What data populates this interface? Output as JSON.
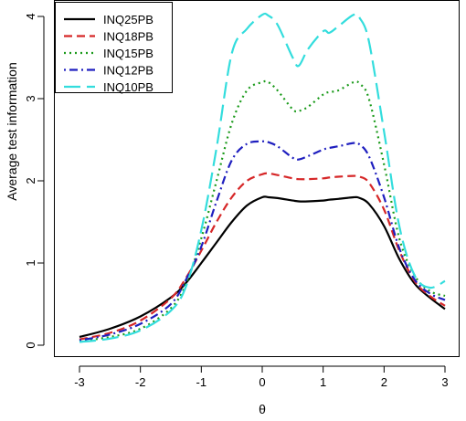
{
  "chart_data": {
    "type": "line",
    "title": "",
    "xlabel": "θ",
    "ylabel": "Average test information",
    "xlim": [
      -3,
      3
    ],
    "ylim": [
      0,
      4.05
    ],
    "xticks": [
      "-3",
      "-2",
      "-1",
      "0",
      "1",
      "2",
      "3"
    ],
    "yticks": [
      "0",
      "1",
      "2",
      "3",
      "4"
    ],
    "grid": false,
    "legend_position": "top-left",
    "x": [
      -3.0,
      -2.5,
      -2.0,
      -1.5,
      -1.25,
      -1.0,
      -0.75,
      -0.5,
      -0.25,
      0.0,
      0.1,
      0.25,
      0.5,
      0.6,
      0.75,
      1.0,
      1.1,
      1.25,
      1.5,
      1.6,
      1.75,
      2.0,
      2.25,
      2.5,
      2.75,
      3.0
    ],
    "series": [
      {
        "name": "INQ25PB",
        "color": "#000000",
        "dash": "solid",
        "values": [
          0.1,
          0.2,
          0.35,
          0.58,
          0.76,
          1.0,
          1.25,
          1.5,
          1.7,
          1.8,
          1.8,
          1.79,
          1.76,
          1.75,
          1.75,
          1.76,
          1.77,
          1.78,
          1.8,
          1.79,
          1.72,
          1.45,
          1.05,
          0.75,
          0.58,
          0.44
        ]
      },
      {
        "name": "INQ18PB",
        "color": "#d62728",
        "dash": "dashed",
        "values": [
          0.07,
          0.15,
          0.3,
          0.57,
          0.82,
          1.15,
          1.5,
          1.8,
          2.0,
          2.08,
          2.09,
          2.07,
          2.03,
          2.02,
          2.02,
          2.03,
          2.04,
          2.05,
          2.06,
          2.05,
          1.98,
          1.65,
          1.15,
          0.78,
          0.6,
          0.48
        ]
      },
      {
        "name": "INQ15PB",
        "color": "#1a9a1a",
        "dash": "dotted",
        "values": [
          0.05,
          0.1,
          0.2,
          0.45,
          0.75,
          1.3,
          2.0,
          2.7,
          3.1,
          3.2,
          3.2,
          3.1,
          2.87,
          2.85,
          2.9,
          3.05,
          3.08,
          3.1,
          3.2,
          3.18,
          3.0,
          2.2,
          1.3,
          0.85,
          0.66,
          0.6
        ]
      },
      {
        "name": "INQ12PB",
        "color": "#1f1fbf",
        "dash": "dashdot",
        "values": [
          0.06,
          0.13,
          0.26,
          0.5,
          0.8,
          1.2,
          1.75,
          2.25,
          2.45,
          2.48,
          2.47,
          2.42,
          2.28,
          2.26,
          2.3,
          2.38,
          2.4,
          2.42,
          2.46,
          2.44,
          2.3,
          1.8,
          1.18,
          0.8,
          0.63,
          0.55
        ]
      },
      {
        "name": "INQ10PB",
        "color": "#33dddd",
        "dash": "longdash",
        "values": [
          0.04,
          0.08,
          0.18,
          0.42,
          0.72,
          1.4,
          2.4,
          3.55,
          3.85,
          4.02,
          4.01,
          3.9,
          3.5,
          3.4,
          3.6,
          3.82,
          3.8,
          3.88,
          4.02,
          3.98,
          3.7,
          2.6,
          1.45,
          0.85,
          0.7,
          0.78
        ]
      }
    ]
  }
}
